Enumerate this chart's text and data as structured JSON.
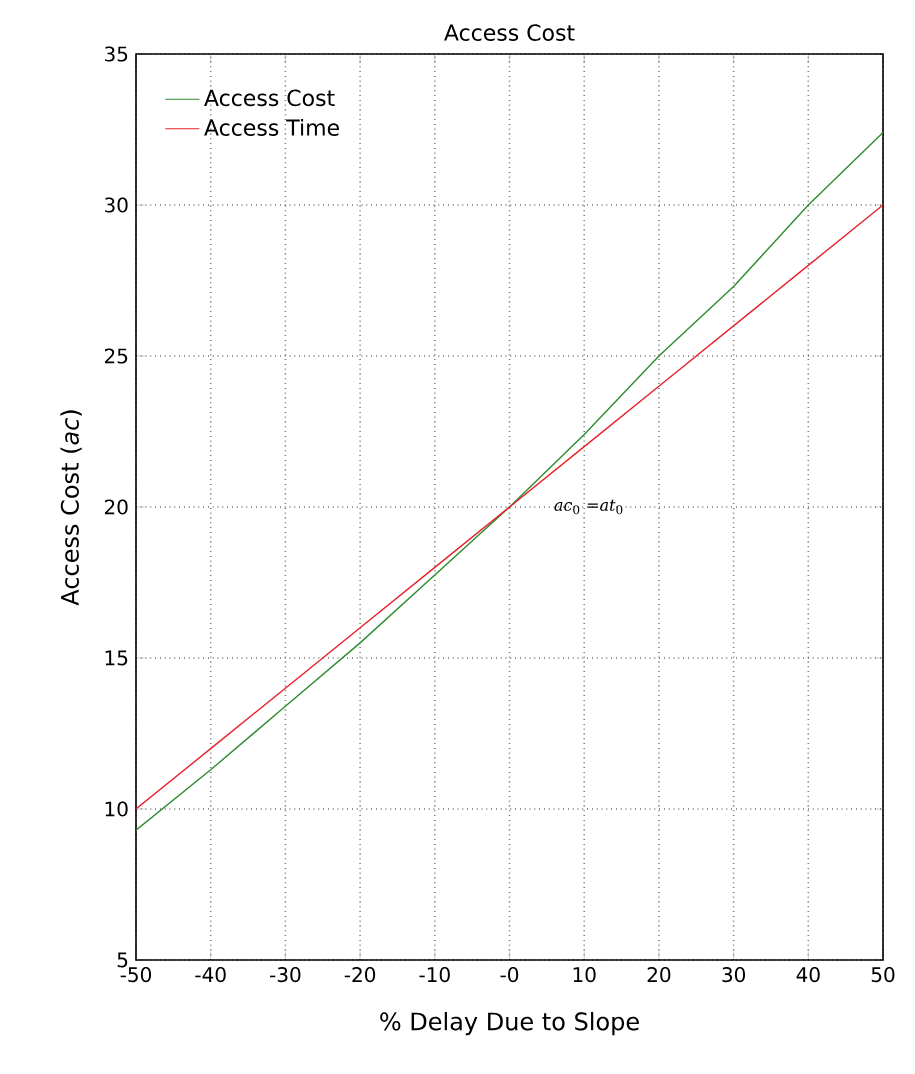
{
  "chart_data": {
    "type": "line",
    "title": "Access Cost",
    "xlabel": "% Delay Due to Slope",
    "ylabel": "Access Cost (*ac*)",
    "x": [
      -50,
      -40,
      -30,
      -20,
      -10,
      0,
      10,
      20,
      30,
      40,
      50
    ],
    "series": [
      {
        "name": "Access Cost",
        "color": "#2e8b2e",
        "values": [
          9.3,
          11.3,
          13.4,
          15.5,
          17.75,
          20,
          22.4,
          25,
          27.3,
          30,
          32.4
        ]
      },
      {
        "name": "Access Time",
        "color": "#e8202a",
        "values": [
          10,
          12,
          14,
          16,
          18,
          20,
          22,
          24,
          26,
          28,
          30
        ]
      }
    ],
    "xlim": [
      -50,
      50
    ],
    "ylim": [
      5,
      35
    ],
    "xticks": [
      -50,
      -40,
      -30,
      -20,
      -10,
      {
        "value": 0,
        "label": "-0"
      },
      10,
      20,
      30,
      40,
      50
    ],
    "yticks": [
      5,
      10,
      15,
      20,
      25,
      30,
      35
    ],
    "annotations": [
      "*ac*$_{0}$ =*at*$_{0}$"
    ],
    "grid": true,
    "legend": "top left",
    "marker": "none",
    "line_style": "solid"
  }
}
